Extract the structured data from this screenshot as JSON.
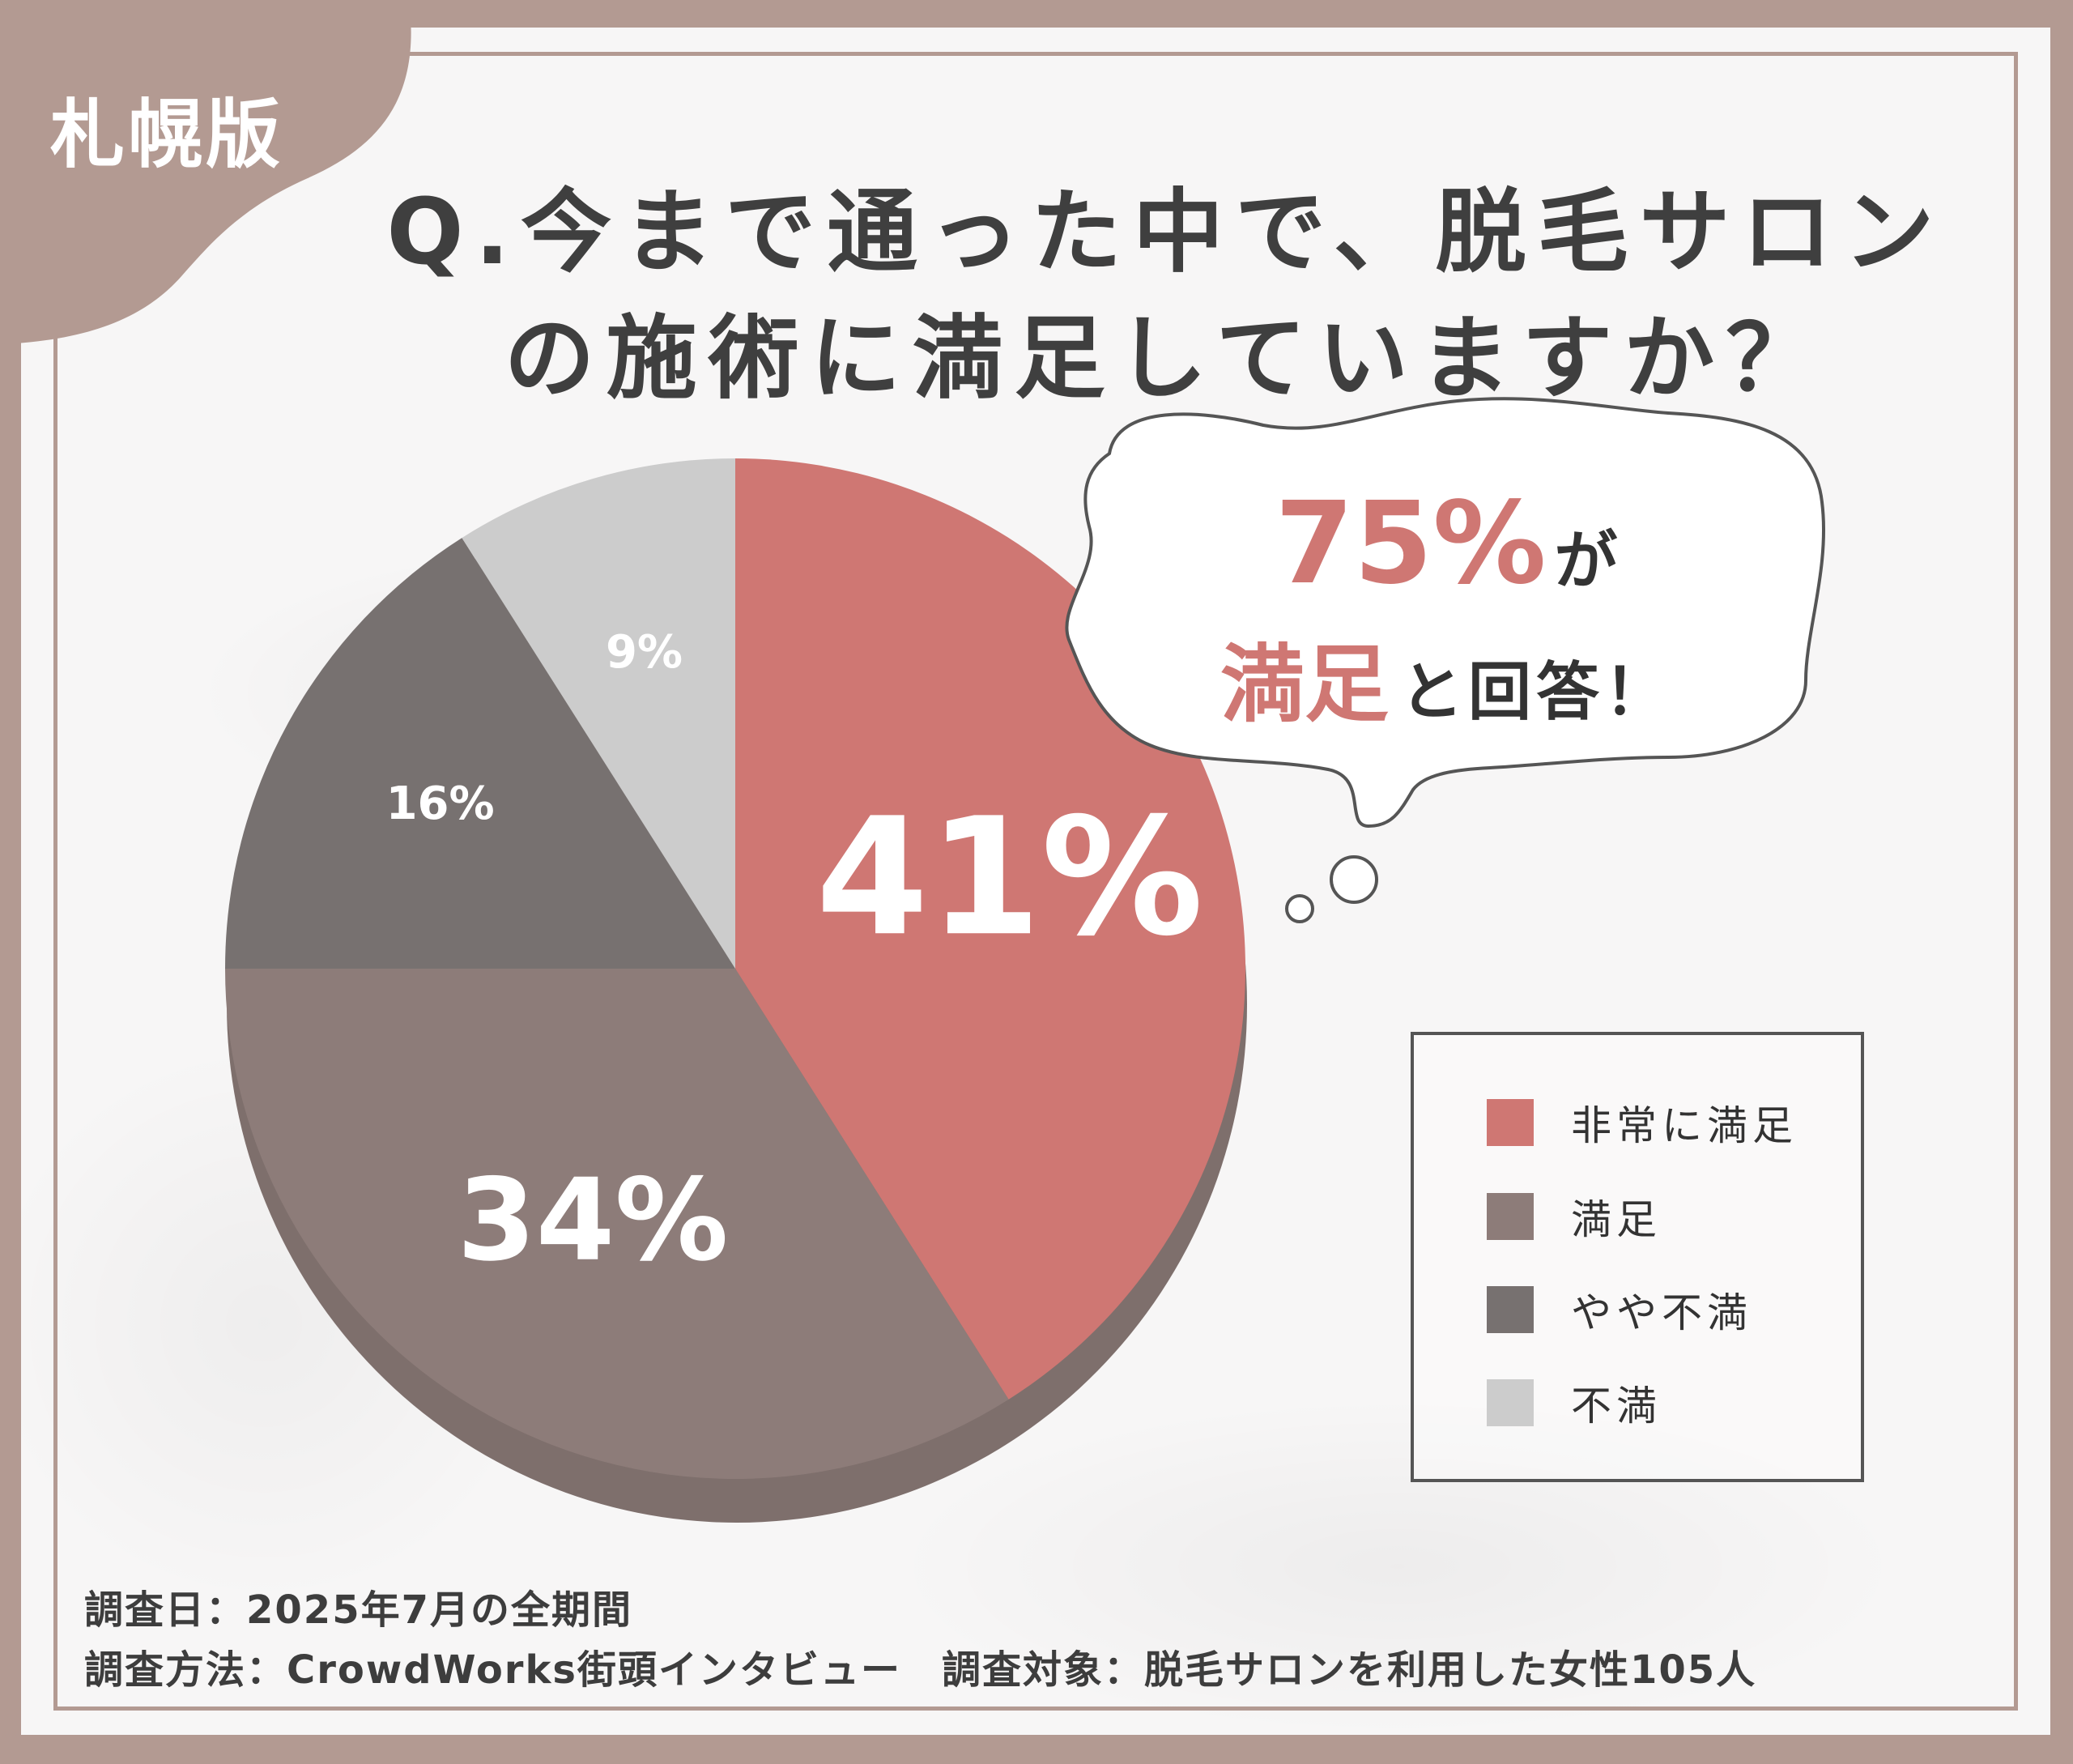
{
  "region_badge": "札幌版",
  "title": {
    "line1": "Q.今まで通った中で、脱毛サロン",
    "line2": "の施術に満足していますか？"
  },
  "colors": {
    "frame": "#b39a92",
    "very_satisfied": "#cf7773",
    "satisfied": "#8d7c79",
    "somewhat_dissatisfied": "#777170",
    "dissatisfied": "#cccccc",
    "accent_text": "#cf7773",
    "title_text": "#3f3f3f"
  },
  "callout": {
    "pct": "75%",
    "particle1": "が",
    "word": "満足",
    "rest": "と回答！"
  },
  "chart_data": {
    "type": "pie",
    "categories": [
      "非常に満足",
      "満足",
      "やや不満",
      "不満"
    ],
    "values": [
      41,
      34,
      16,
      9
    ],
    "labels": [
      "41%",
      "34%",
      "16%",
      "9%"
    ],
    "colors": [
      "#cf7773",
      "#8d7c79",
      "#777170",
      "#cccccc"
    ],
    "start_angle": "12 o'clock",
    "direction": "clockwise",
    "legend_position": "right"
  },
  "footnotes": {
    "line1": "調査日：2025年7月の全期間",
    "line2": "調査方法：CrowdWorks街頭インタビュー　調査対象：脱毛サロンを利用した女性105人"
  }
}
